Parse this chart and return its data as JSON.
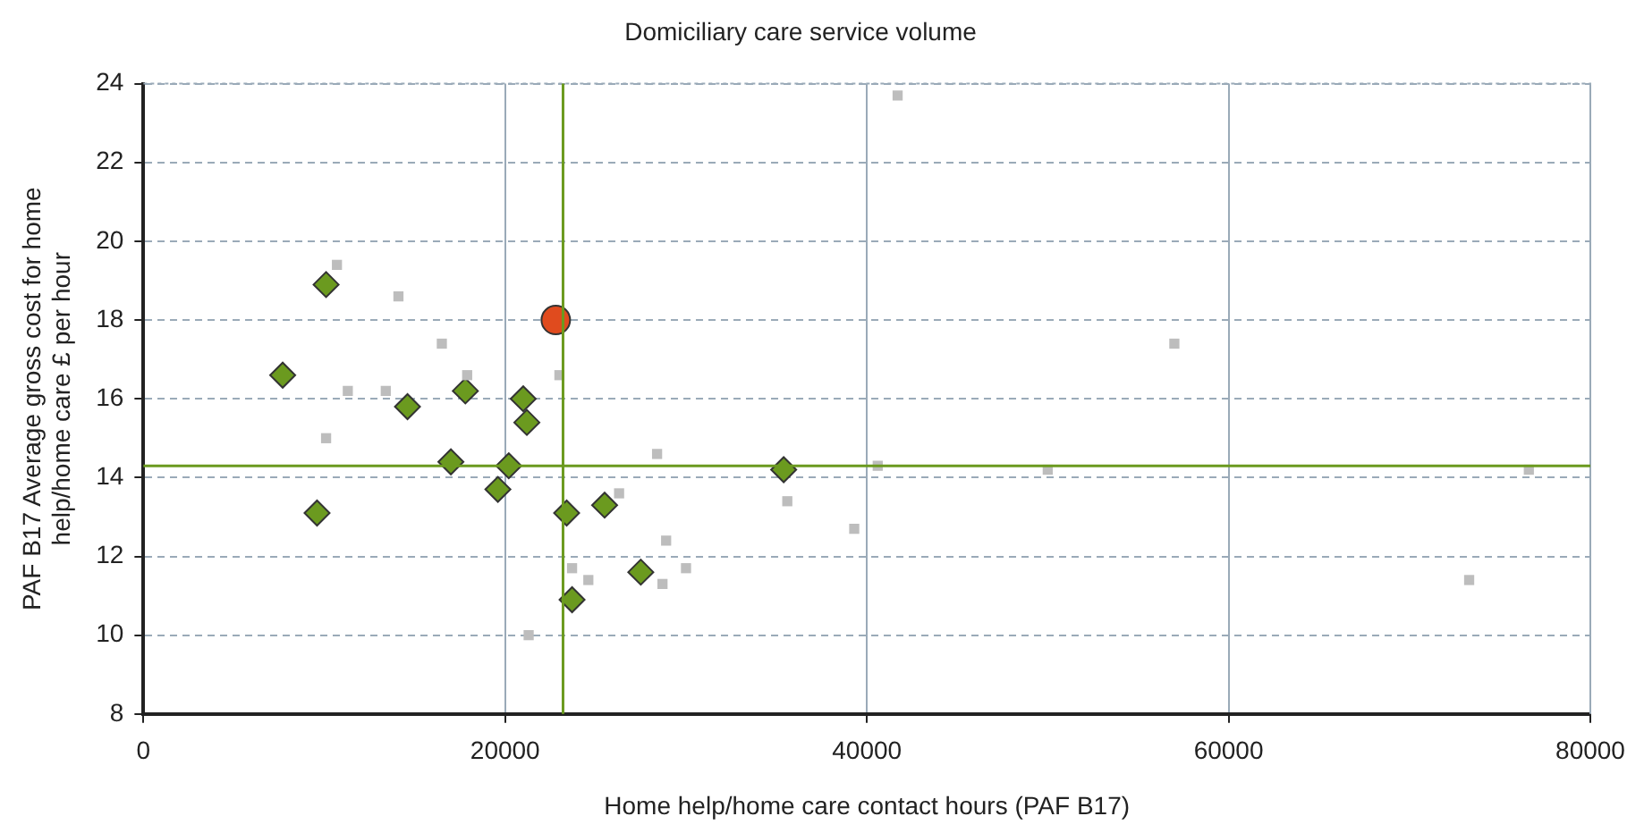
{
  "chart_data": {
    "type": "scatter",
    "title": "Domiciliary care service volume",
    "xlabel": "Home help/home care contact hours (PAF B17)",
    "ylabel": "PAF B17 Average gross cost for home help/home care £ per hour",
    "series": [
      {
        "color": "#bdbdbd",
        "marker": "square",
        "x": [
          10700,
          14100,
          16500,
          11300,
          13400,
          10100,
          17900,
          23000,
          26300,
          28400,
          28900,
          30000,
          28700,
          23700,
          24600,
          21300,
          41700,
          40600,
          35600,
          39300,
          50000,
          57000,
          76600,
          73300
        ],
        "values": [
          19.4,
          18.6,
          17.4,
          16.2,
          16.2,
          15.0,
          16.6,
          16.6,
          13.6,
          14.6,
          12.4,
          11.7,
          11.3,
          11.7,
          11.4,
          10.0,
          23.7,
          14.3,
          13.4,
          12.7,
          14.2,
          17.4,
          14.2,
          11.4
        ]
      },
      {
        "color": "#6b9a1f",
        "marker": "diamond",
        "x": [
          10100,
          7700,
          14600,
          17800,
          17000,
          9600,
          21000,
          21200,
          20200,
          19600,
          23400,
          25500,
          23700,
          27500,
          35400
        ],
        "values": [
          18.9,
          16.6,
          15.8,
          16.2,
          14.4,
          13.1,
          16.0,
          15.4,
          14.3,
          13.7,
          13.1,
          13.3,
          10.9,
          11.6,
          14.2
        ]
      },
      {
        "color": "#e04b1e",
        "marker": "circle",
        "x": [
          22800
        ],
        "values": [
          18.0
        ]
      }
    ],
    "ref_lines": [
      {
        "axis": "x",
        "value": 23200,
        "color": "#6b9a1f"
      },
      {
        "axis": "y",
        "value": 14.3,
        "color": "#6b9a1f"
      }
    ],
    "xlim": [
      0,
      80000
    ],
    "xticks": [
      0,
      20000,
      40000,
      60000,
      80000
    ],
    "ylim": [
      8,
      24
    ],
    "yticks": [
      8,
      10,
      12,
      14,
      16,
      18,
      20,
      22,
      24
    ],
    "grid": true
  }
}
